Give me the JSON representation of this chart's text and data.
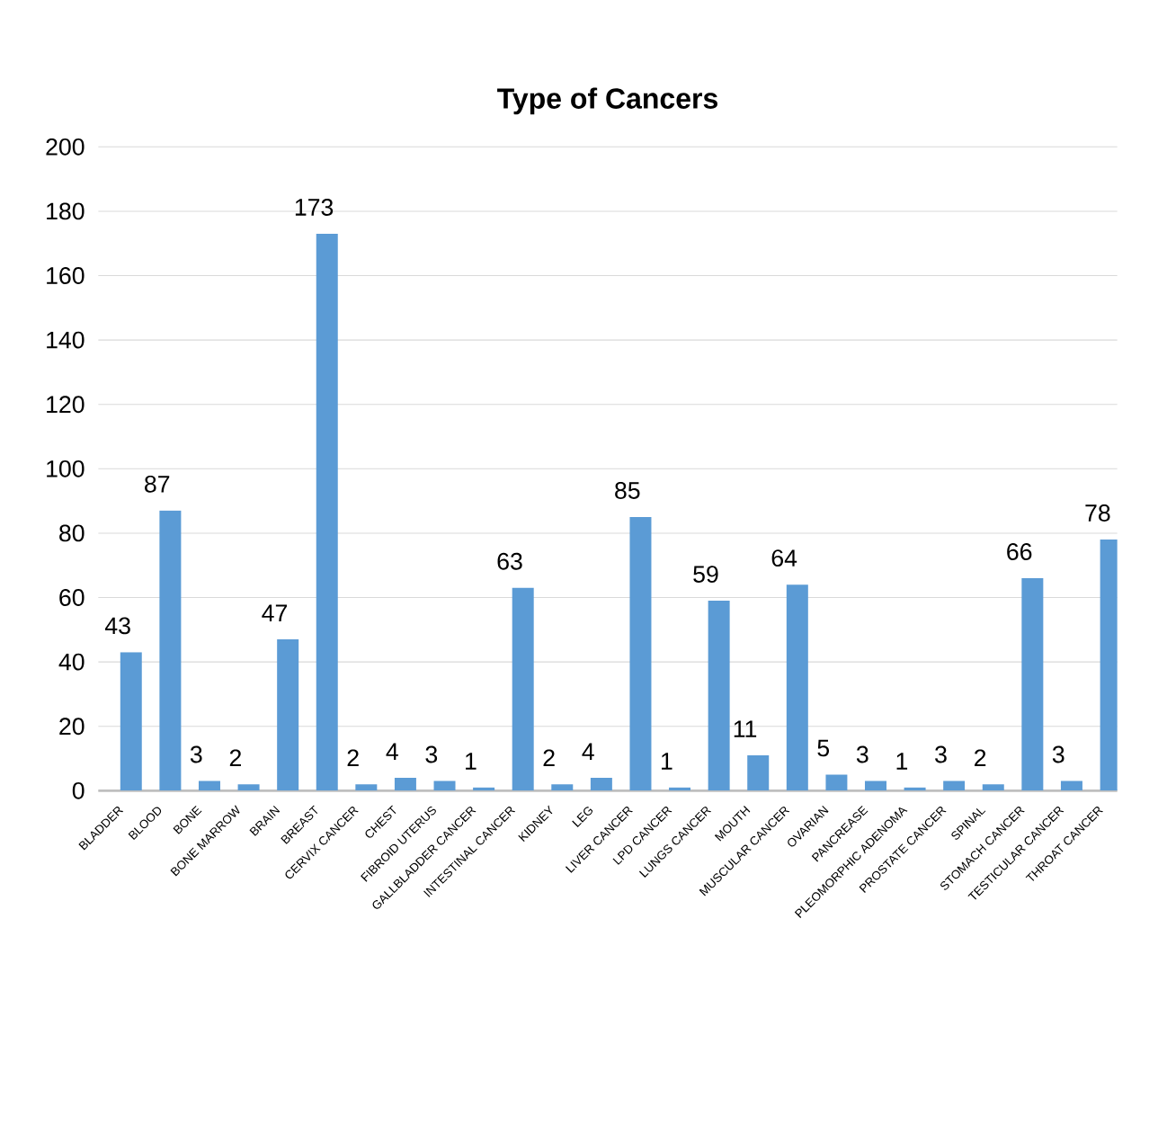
{
  "chart_data": {
    "type": "bar",
    "title": "Type of Cancers",
    "categories": [
      "BLADDER",
      "BLOOD",
      "BONE",
      "BONE MARROW",
      "BRAIN",
      "BREAST",
      "CERVIX CANCER",
      "CHEST",
      "FIBROID UTERUS",
      "GALLBLADDER CANCER",
      "INTESTINAL CANCER",
      "KIDNEY",
      "LEG",
      "LIVER CANCER",
      "LPD CANCER",
      "LUNGS CANCER",
      "MOUTH",
      "MUSCULAR CANCER",
      "OVARIAN",
      "PANCREASE",
      "PLEOMORPHIC ADENOMA",
      "PROSTATE CANCER",
      "SPINAL",
      "STOMACH CANCER",
      "TESTICULAR CANCER",
      "THROAT CANCER"
    ],
    "values": [
      43,
      87,
      3,
      2,
      47,
      173,
      2,
      4,
      3,
      1,
      63,
      2,
      4,
      85,
      1,
      59,
      11,
      64,
      5,
      3,
      1,
      3,
      2,
      66,
      3,
      78
    ],
    "color": "#5b9bd5",
    "ylim": [
      0,
      200
    ],
    "yticks": [
      0,
      20,
      40,
      60,
      80,
      100,
      120,
      140,
      160,
      180,
      200
    ],
    "grid": "y",
    "data_labels": true
  }
}
